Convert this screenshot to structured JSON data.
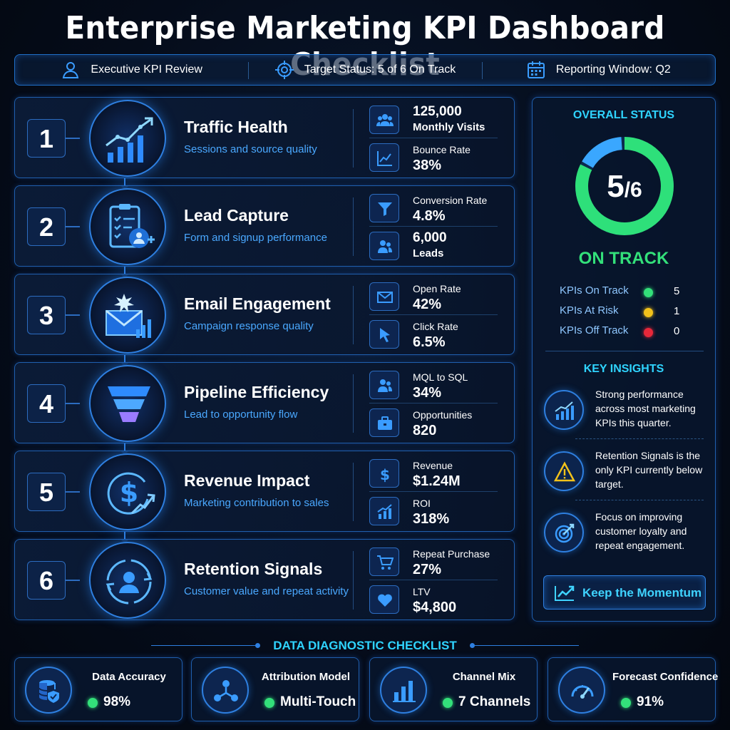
{
  "title": "Enterprise Marketing KPI Dashboard Checklist",
  "topbar": {
    "review": "Executive KPI Review",
    "target": "Target Status: 5 of 6 On Track",
    "window": "Reporting Window: Q2"
  },
  "rows": [
    {
      "num": "1",
      "title": "Traffic Health",
      "subtitle": "Sessions and source quality",
      "icon": "growth-chart-icon",
      "metrics": [
        {
          "value": "125,000",
          "label": "Monthly Visits",
          "icon": "users-icon"
        },
        {
          "label": "Bounce Rate",
          "value": "38%",
          "icon": "line-chart-icon"
        }
      ]
    },
    {
      "num": "2",
      "title": "Lead Capture",
      "subtitle": "Form and signup performance",
      "icon": "clipboard-user-icon",
      "metrics": [
        {
          "label": "Conversion Rate",
          "value": "4.8%",
          "icon": "funnel-icon"
        },
        {
          "value": "6,000",
          "label": "Leads",
          "icon": "users-icon"
        }
      ]
    },
    {
      "num": "3",
      "title": "Email Engagement",
      "subtitle": "Campaign response quality",
      "icon": "envelope-chart-icon",
      "metrics": [
        {
          "label": "Open Rate",
          "value": "42%",
          "icon": "envelope-icon"
        },
        {
          "label": "Click Rate",
          "value": "6.5%",
          "icon": "cursor-icon"
        }
      ]
    },
    {
      "num": "4",
      "title": "Pipeline Efficiency",
      "subtitle": "Lead to opportunity flow",
      "icon": "funnel-icon",
      "metrics": [
        {
          "label": "MQL to SQL",
          "value": "34%",
          "icon": "users-icon"
        },
        {
          "label": "Opportunities",
          "value": "820",
          "icon": "briefcase-icon"
        }
      ]
    },
    {
      "num": "5",
      "title": "Revenue Impact",
      "subtitle": "Marketing contribution to sales",
      "icon": "dollar-growth-icon",
      "metrics": [
        {
          "label": "Revenue",
          "value": "$1.24M",
          "icon": "dollar-icon"
        },
        {
          "label": "ROI",
          "value": "318%",
          "icon": "bar-growth-icon"
        }
      ]
    },
    {
      "num": "6",
      "title": "Retention Signals",
      "subtitle": "Customer value and repeat activity",
      "icon": "user-cycle-icon",
      "metrics": [
        {
          "label": "Repeat Purchase",
          "value": "27%",
          "icon": "cart-icon"
        },
        {
          "label": "LTV",
          "value": "$4,800",
          "icon": "heart-icon"
        }
      ]
    }
  ],
  "status": {
    "heading": "OVERALL STATUS",
    "score": "5",
    "total": "/6",
    "on_track_fraction": 0.8333,
    "label": "ON TRACK",
    "counts": [
      {
        "label": "KPIs On Track",
        "count": "5",
        "color": "#33e07a"
      },
      {
        "label": "KPIs At Risk",
        "count": "1",
        "color": "#f2c21b"
      },
      {
        "label": "KPIs Off Track",
        "count": "0",
        "color": "#e8283a"
      }
    ],
    "insights_heading": "KEY INSIGHTS",
    "insights": [
      {
        "text": "Strong performance across most marketing KPIs this quarter.",
        "icon": "growth-chart-icon"
      },
      {
        "text": "Retention Signals is the only KPI currently below target.",
        "icon": "warning-icon"
      },
      {
        "text": "Focus on improving customer loyalty and repeat engagement.",
        "icon": "target-icon"
      }
    ],
    "cta": "Keep the Momentum"
  },
  "diagnostics": {
    "heading": "DATA DIAGNOSTIC CHECKLIST",
    "cards": [
      {
        "title": "Data Accuracy",
        "value": "98%",
        "icon": "database-shield-icon"
      },
      {
        "title": "Attribution Model",
        "value": "Multi-Touch",
        "icon": "network-icon"
      },
      {
        "title": "Channel Mix",
        "value": "7 Channels",
        "icon": "bar-chart-icon"
      },
      {
        "title": "Forecast Confidence",
        "value": "91%",
        "icon": "gauge-icon"
      }
    ]
  },
  "colors": {
    "accent": "#2e7fe0",
    "heading_cyan": "#2fd4ff",
    "success": "#33e07a",
    "warning": "#f2c21b",
    "danger": "#e8283a"
  }
}
